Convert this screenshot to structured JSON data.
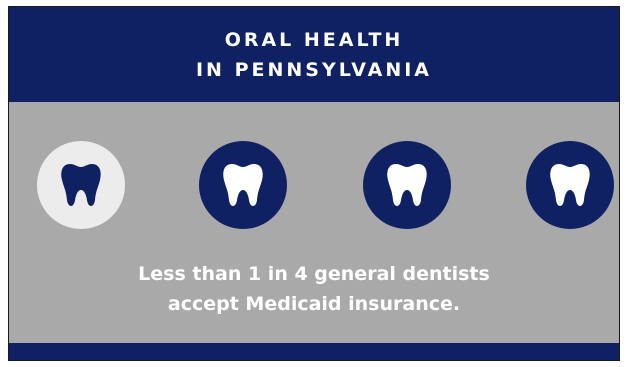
{
  "header": {
    "title_line1": "ORAL HEALTH",
    "title_line2": "IN PENNSYLVANIA"
  },
  "teeth": [
    {
      "icon": "tooth-icon",
      "highlighted": true
    },
    {
      "icon": "tooth-icon",
      "highlighted": false
    },
    {
      "icon": "tooth-icon",
      "highlighted": false
    },
    {
      "icon": "tooth-icon",
      "highlighted": false
    }
  ],
  "caption": {
    "line1": "Less than 1 in 4 general dentists",
    "line2": "accept Medicaid insurance."
  },
  "colors": {
    "navy": "#0f2163",
    "gray_background": "#a9a9a9",
    "highlight_circle": "#ececec",
    "white": "#ffffff"
  }
}
